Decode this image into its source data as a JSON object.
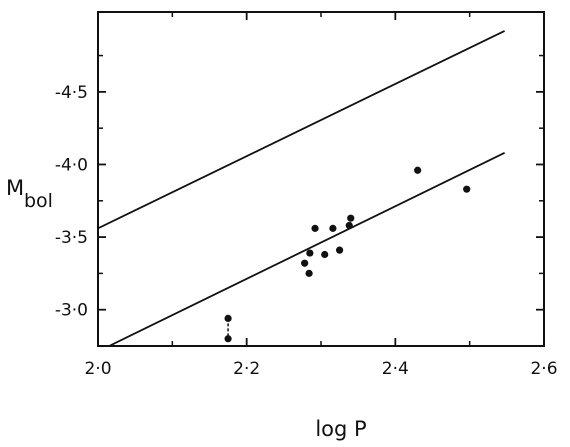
{
  "chart_data": {
    "type": "scatter",
    "xlabel": "log P",
    "ylabel_main": "M",
    "ylabel_sub": "bol",
    "xlim": [
      2.0,
      2.6
    ],
    "ylim": [
      -2.75,
      -5.05
    ],
    "y_inverted": true,
    "x_ticks": [
      2.0,
      2.2,
      2.4,
      2.6
    ],
    "x_tick_labels": [
      "2·0",
      "2·2",
      "2·4",
      "2·6"
    ],
    "y_ticks": [
      -3.0,
      -3.5,
      -4.0,
      -4.5
    ],
    "y_tick_labels": [
      "-3·0",
      "-3·5",
      "-4·0",
      "-4·5"
    ],
    "grid": false,
    "series": [
      {
        "values": [
          {
            "x": 2.175,
            "y": -2.94
          },
          {
            "x": 2.175,
            "y": -2.8
          },
          {
            "x": 2.278,
            "y": -3.32
          },
          {
            "x": 2.284,
            "y": -3.25
          },
          {
            "x": 2.285,
            "y": -3.39
          },
          {
            "x": 2.292,
            "y": -3.56
          },
          {
            "x": 2.305,
            "y": -3.38
          },
          {
            "x": 2.316,
            "y": -3.56
          },
          {
            "x": 2.325,
            "y": -3.41
          },
          {
            "x": 2.338,
            "y": -3.58
          },
          {
            "x": 2.34,
            "y": -3.63
          },
          {
            "x": 2.43,
            "y": -3.96
          },
          {
            "x": 2.496,
            "y": -3.83
          }
        ]
      }
    ],
    "connectors": [
      {
        "x1": 2.175,
        "y1": -2.94,
        "x2": 2.175,
        "y2": -2.8,
        "style": "dashed"
      }
    ],
    "lines": [
      {
        "x1": 2.0,
        "y1": -3.56,
        "x2": 2.547,
        "y2": -4.92
      },
      {
        "x1": 2.015,
        "y1": -2.75,
        "x2": 2.547,
        "y2": -4.08
      }
    ]
  }
}
